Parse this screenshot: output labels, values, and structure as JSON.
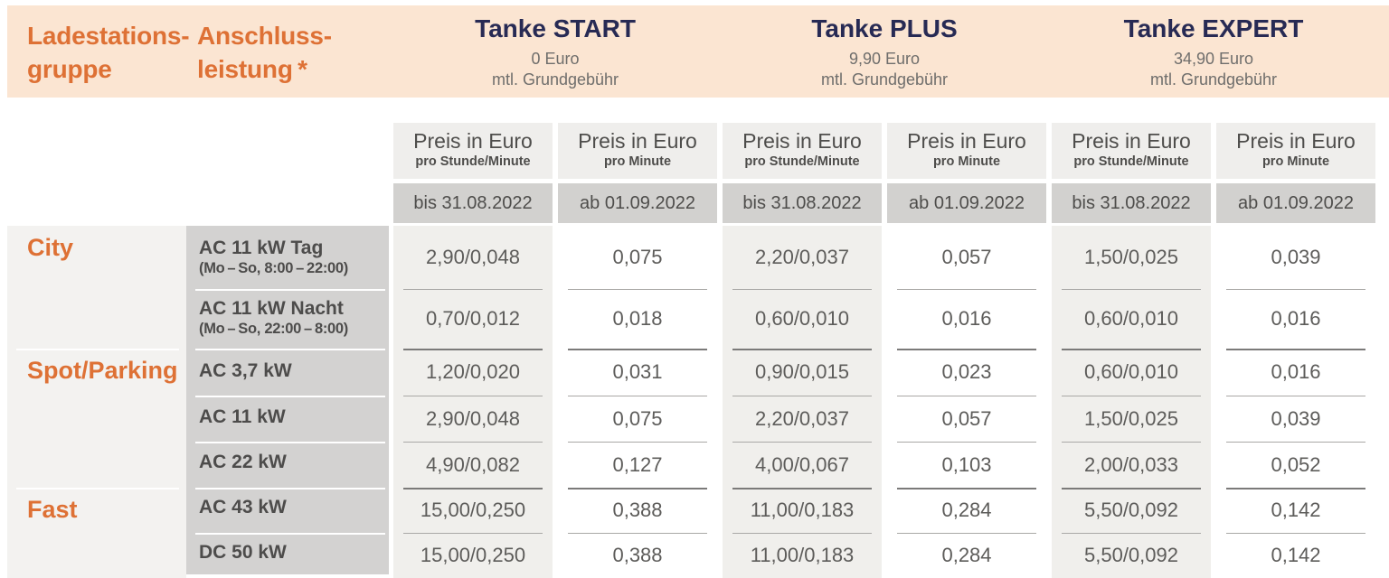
{
  "colors": {
    "accent_orange": "#de7135",
    "tariff_navy": "#272a54",
    "header_peach_bg": "#fbe5d2",
    "period_row_bg": "#d2d1cf",
    "power_column_bg": "#d3d2d1"
  },
  "header": {
    "group_heading": {
      "line1": "Ladestations-",
      "line2": "gruppe"
    },
    "power_heading": {
      "line1": "Anschluss-",
      "line2": "leistung *"
    },
    "tariffs": [
      {
        "name": "Tanke START",
        "monthly_fee": "0 Euro",
        "fee_note": "mtl. Grundgebühr"
      },
      {
        "name": "Tanke PLUS",
        "monthly_fee": "9,90 Euro",
        "fee_note": "mtl. Grundgebühr"
      },
      {
        "name": "Tanke EXPERT",
        "monthly_fee": "34,90 Euro",
        "fee_note": "mtl. Grundgebühr"
      }
    ]
  },
  "price_columns": [
    {
      "title": "Preis in Euro",
      "subtitle": "pro Stunde/Minute",
      "period": "bis 31.08.2022"
    },
    {
      "title": "Preis in Euro",
      "subtitle": "pro Minute",
      "period": "ab 01.09.2022"
    },
    {
      "title": "Preis in Euro",
      "subtitle": "pro Stunde/Minute",
      "period": "bis 31.08.2022"
    },
    {
      "title": "Preis in Euro",
      "subtitle": "pro Minute",
      "period": "ab 01.09.2022"
    },
    {
      "title": "Preis in Euro",
      "subtitle": "pro Stunde/Minute",
      "period": "bis 31.08.2022"
    },
    {
      "title": "Preis in Euro",
      "subtitle": "pro Minute",
      "period": "ab 01.09.2022"
    }
  ],
  "groups": [
    {
      "name": "City"
    },
    {
      "name": "Spot/Parking"
    },
    {
      "name": "Fast"
    }
  ],
  "rows": [
    {
      "label": "AC 11 kW Tag",
      "sublabel": "(Mo – So, 8:00 – 22:00)",
      "values": [
        "2,90/0,048",
        "0,075",
        "2,20/0,037",
        "0,057",
        "1,50/0,025",
        "0,039"
      ]
    },
    {
      "label": "AC 11 kW Nacht",
      "sublabel": "(Mo – So, 22:00 – 8:00)",
      "values": [
        "0,70/0,012",
        "0,018",
        "0,60/0,010",
        "0,016",
        "0,60/0,010",
        "0,016"
      ]
    },
    {
      "label": "AC 3,7 kW",
      "values": [
        "1,20/0,020",
        "0,031",
        "0,90/0,015",
        "0,023",
        "0,60/0,010",
        "0,016"
      ]
    },
    {
      "label": "AC 11 kW",
      "values": [
        "2,90/0,048",
        "0,075",
        "2,20/0,037",
        "0,057",
        "1,50/0,025",
        "0,039"
      ]
    },
    {
      "label": "AC 22 kW",
      "values": [
        "4,90/0,082",
        "0,127",
        "4,00/0,067",
        "0,103",
        "2,00/0,033",
        "0,052"
      ]
    },
    {
      "label": "AC 43 kW",
      "values": [
        "15,00/0,250",
        "0,388",
        "11,00/0,183",
        "0,284",
        "5,50/0,092",
        "0,142"
      ]
    },
    {
      "label": "DC 50 kW",
      "values": [
        "15,00/0,250",
        "0,388",
        "11,00/0,183",
        "0,284",
        "5,50/0,092",
        "0,142"
      ]
    }
  ]
}
